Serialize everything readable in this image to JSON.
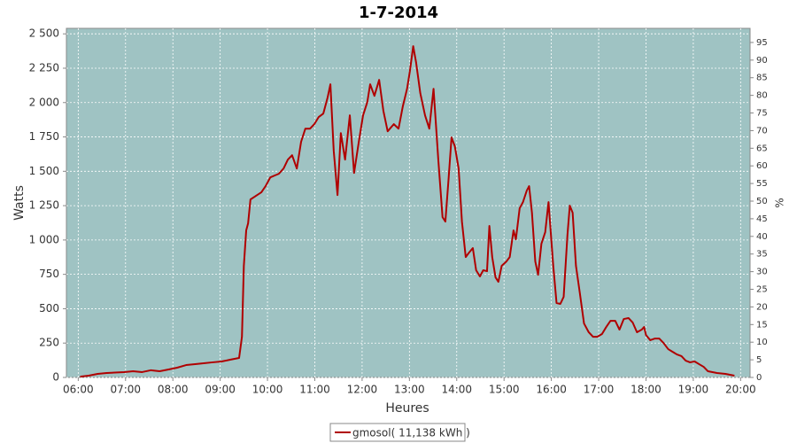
{
  "chart_data": {
    "type": "line",
    "title": "1-7-2014",
    "x_label": "Heures",
    "y_label": "Watts",
    "y2_label": "%",
    "grid": true,
    "legend": "bottom",
    "xlim": [
      5.75,
      20.2
    ],
    "ylim": [
      0,
      2540
    ],
    "y2lim": [
      0,
      99
    ],
    "xticks": [
      {
        "value": 6,
        "label": "06:00"
      },
      {
        "value": 7,
        "label": "07:00"
      },
      {
        "value": 8,
        "label": "08:00"
      },
      {
        "value": 9,
        "label": "09:00"
      },
      {
        "value": 10,
        "label": "10:00"
      },
      {
        "value": 11,
        "label": "11:00"
      },
      {
        "value": 12,
        "label": "12:00"
      },
      {
        "value": 13,
        "label": "13:00"
      },
      {
        "value": 14,
        "label": "14:00"
      },
      {
        "value": 15,
        "label": "15:00"
      },
      {
        "value": 16,
        "label": "16:00"
      },
      {
        "value": 17,
        "label": "17:00"
      },
      {
        "value": 18,
        "label": "18:00"
      },
      {
        "value": 19,
        "label": "19:00"
      },
      {
        "value": 20,
        "label": "20:00"
      }
    ],
    "yticks": [
      0,
      250,
      500,
      750,
      {
        "value": 1000,
        "label": "1 000"
      },
      {
        "value": 1250,
        "label": "1 250"
      },
      {
        "value": 1500,
        "label": "1 500"
      },
      {
        "value": 1750,
        "label": "1 750"
      },
      {
        "value": 2000,
        "label": "2 000"
      },
      {
        "value": 2250,
        "label": "2 250"
      },
      {
        "value": 2500,
        "label": "2 500"
      }
    ],
    "y2ticks": [
      0,
      5,
      10,
      15,
      20,
      25,
      30,
      35,
      40,
      45,
      50,
      55,
      60,
      65,
      70,
      75,
      80,
      85,
      90,
      95
    ],
    "x": [
      6.04,
      6.22,
      6.41,
      6.6,
      6.97,
      7.16,
      7.35,
      7.53,
      7.72,
      7.91,
      8.09,
      8.28,
      8.47,
      8.65,
      8.84,
      9.03,
      9.21,
      9.4,
      9.46,
      9.5,
      9.55,
      9.59,
      9.64,
      9.78,
      9.87,
      9.96,
      10.06,
      10.15,
      10.24,
      10.34,
      10.43,
      10.52,
      10.62,
      10.71,
      10.8,
      10.9,
      10.99,
      11.08,
      11.18,
      11.27,
      11.33,
      11.4,
      11.48,
      11.55,
      11.64,
      11.74,
      11.83,
      11.93,
      12.02,
      12.11,
      12.17,
      12.26,
      12.36,
      12.45,
      12.54,
      12.67,
      12.77,
      12.86,
      12.95,
      13.01,
      13.08,
      13.14,
      13.23,
      13.33,
      13.42,
      13.51,
      13.61,
      13.7,
      13.76,
      13.83,
      13.89,
      13.96,
      14.04,
      14.11,
      14.19,
      14.26,
      14.34,
      14.41,
      14.49,
      14.56,
      14.64,
      14.69,
      14.75,
      14.82,
      14.88,
      14.95,
      15.05,
      15.12,
      15.2,
      15.25,
      15.33,
      15.4,
      15.48,
      15.53,
      15.59,
      15.66,
      15.72,
      15.79,
      15.87,
      15.94,
      16.04,
      16.11,
      16.19,
      16.26,
      16.34,
      16.39,
      16.45,
      16.52,
      16.6,
      16.69,
      16.79,
      16.88,
      16.97,
      17.07,
      17.16,
      17.25,
      17.35,
      17.44,
      17.53,
      17.63,
      17.72,
      17.81,
      17.91,
      17.96,
      18.0,
      18.09,
      18.19,
      18.28,
      18.37,
      18.47,
      18.56,
      18.65,
      18.75,
      18.84,
      18.93,
      19.03,
      19.12,
      19.22,
      19.31,
      19.5,
      19.68,
      19.87
    ],
    "series": [
      {
        "name": "gmosol( 11,138 kWh )",
        "color": "#b00000",
        "values": [
          6,
          13,
          26,
          32,
          39,
          45,
          39,
          52,
          45,
          58,
          71,
          90,
          97,
          103,
          110,
          116,
          129,
          142,
          296,
          812,
          1070,
          1121,
          1295,
          1327,
          1347,
          1392,
          1456,
          1469,
          1482,
          1520,
          1585,
          1617,
          1520,
          1714,
          1810,
          1810,
          1843,
          1894,
          1920,
          2036,
          2133,
          1649,
          1327,
          1778,
          1585,
          1907,
          1488,
          1714,
          1907,
          2004,
          2133,
          2049,
          2165,
          1939,
          1791,
          1843,
          1810,
          1972,
          2100,
          2229,
          2410,
          2294,
          2068,
          1907,
          1810,
          2100,
          1585,
          1166,
          1134,
          1456,
          1746,
          1682,
          1520,
          1134,
          876,
          908,
          941,
          780,
          735,
          780,
          773,
          1102,
          876,
          728,
          696,
          812,
          844,
          876,
          1070,
          1005,
          1231,
          1276,
          1359,
          1392,
          1198,
          844,
          747,
          973,
          1057,
          1276,
          812,
          541,
          535,
          586,
          1037,
          1250,
          1198,
          812,
          619,
          393,
          329,
          296,
          296,
          316,
          367,
          412,
          412,
          348,
          425,
          432,
          399,
          329,
          348,
          367,
          309,
          271,
          283,
          283,
          251,
          206,
          187,
          168,
          155,
          122,
          110,
          116,
          97,
          77,
          45,
          32,
          26,
          13
        ]
      }
    ]
  }
}
